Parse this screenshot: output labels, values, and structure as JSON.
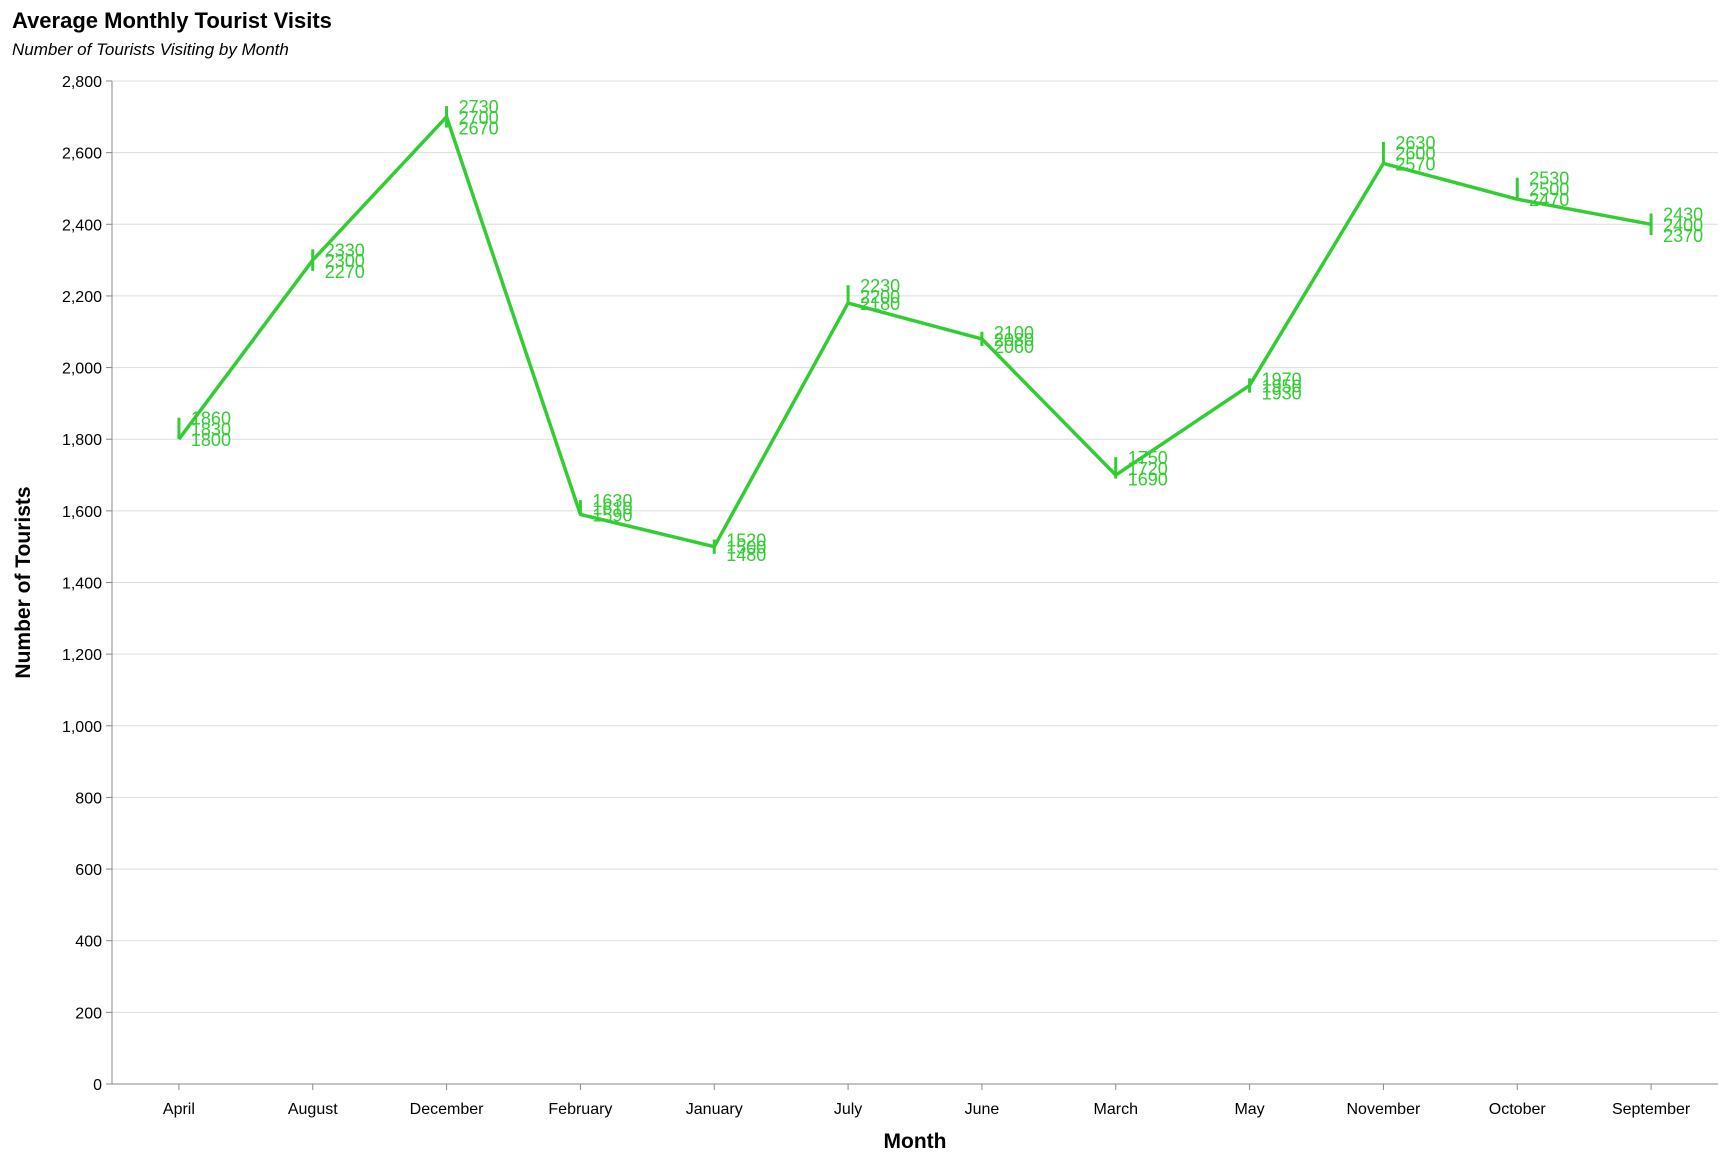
{
  "chart_data": {
    "type": "line",
    "title": "Average Monthly Tourist Visits",
    "subtitle": "Number of Tourists Visiting by Month",
    "xlabel": "Month",
    "ylabel": "Number of Tourists",
    "ylim": [
      0,
      2800
    ],
    "y_ticks": [
      0,
      200,
      400,
      600,
      800,
      1000,
      1200,
      1400,
      1600,
      1800,
      2000,
      2200,
      2400,
      2600,
      2800
    ],
    "y_tick_labels": [
      "0",
      "200",
      "400",
      "600",
      "800",
      "1,000",
      "1,200",
      "1,400",
      "1,600",
      "1,800",
      "2,000",
      "2,200",
      "2,400",
      "2,600",
      "2,800"
    ],
    "grid": true,
    "color": "#32cd32",
    "categories": [
      "April",
      "August",
      "December",
      "February",
      "January",
      "July",
      "June",
      "March",
      "May",
      "November",
      "October",
      "September"
    ],
    "points": [
      {
        "month": "April",
        "low": 1800,
        "mid": 1830,
        "high": 1860
      },
      {
        "month": "August",
        "low": 2270,
        "mid": 2300,
        "high": 2330
      },
      {
        "month": "December",
        "low": 2670,
        "mid": 2700,
        "high": 2730
      },
      {
        "month": "February",
        "low": 1590,
        "mid": 1610,
        "high": 1630
      },
      {
        "month": "January",
        "low": 1480,
        "mid": 1500,
        "high": 1520
      },
      {
        "month": "July",
        "low": 2180,
        "mid": 2200,
        "high": 2230
      },
      {
        "month": "June",
        "low": 2060,
        "mid": 2080,
        "high": 2100
      },
      {
        "month": "March",
        "low": 1690,
        "mid": 1720,
        "high": 1750
      },
      {
        "month": "May",
        "low": 1930,
        "mid": 1950,
        "high": 1970
      },
      {
        "month": "November",
        "low": 2570,
        "mid": 2600,
        "high": 2630
      },
      {
        "month": "October",
        "low": 2470,
        "mid": 2500,
        "high": 2530
      },
      {
        "month": "September",
        "low": 2370,
        "mid": 2400,
        "high": 2430
      }
    ],
    "line_values": [
      1800,
      2300,
      2700,
      1590,
      1500,
      2180,
      2080,
      1700,
      1950,
      2570,
      2470,
      2400
    ]
  }
}
